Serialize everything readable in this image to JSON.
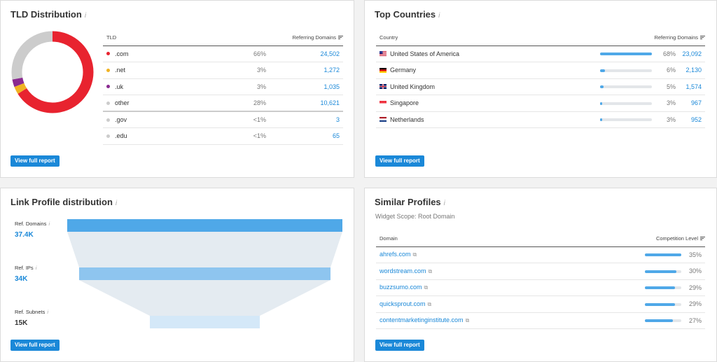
{
  "tld": {
    "title": "TLD Distribution",
    "info": "i",
    "col_tld": "TLD",
    "col_ref": "Referring Domains",
    "rows": [
      {
        "tld": ".com",
        "pct": "66%",
        "value": "24,502",
        "color": "#e8232f"
      },
      {
        "tld": ".net",
        "pct": "3%",
        "value": "1,272",
        "color": "#f0b323"
      },
      {
        "tld": ".uk",
        "pct": "3%",
        "value": "1,035",
        "color": "#8a2a90"
      },
      {
        "tld": "other",
        "pct": "28%",
        "value": "10,621",
        "color": "#cccccc"
      },
      {
        "tld": ".gov",
        "pct": "<1%",
        "value": "3",
        "color": "#cccccc"
      },
      {
        "tld": ".edu",
        "pct": "<1%",
        "value": "65",
        "color": "#cccccc"
      }
    ],
    "donut_fractions": [
      0.66,
      0.03,
      0.03,
      0.28
    ],
    "button": "View full report"
  },
  "countries": {
    "title": "Top Countries",
    "info": "i",
    "col_country": "Country",
    "col_ref": "Referring Domains",
    "rows": [
      {
        "name": "United States of America",
        "flag": "us-flag-icon",
        "pct": "68%",
        "value": "23,092",
        "fill": 1.0
      },
      {
        "name": "Germany",
        "flag": "de-flag-icon",
        "pct": "6%",
        "value": "2,130",
        "fill": 0.09
      },
      {
        "name": "United Kingdom",
        "flag": "uk-flag-icon",
        "pct": "5%",
        "value": "1,574",
        "fill": 0.07
      },
      {
        "name": "Singapore",
        "flag": "sg-flag-icon",
        "pct": "3%",
        "value": "967",
        "fill": 0.04
      },
      {
        "name": "Netherlands",
        "flag": "nl-flag-icon",
        "pct": "3%",
        "value": "952",
        "fill": 0.04
      }
    ],
    "button": "View full report"
  },
  "link_profile": {
    "title": "Link Profile distribution",
    "info": "i",
    "items": [
      {
        "label": "Ref. Domains",
        "value": "37.4K"
      },
      {
        "label": "Ref. IPs",
        "value": "34K"
      },
      {
        "label": "Ref. Subnets",
        "value": "15K"
      }
    ],
    "button": "View full report"
  },
  "similar": {
    "title": "Similar Profiles",
    "info": "i",
    "scope": "Widget Scope: Root Domain",
    "col_domain": "Domain",
    "col_level": "Competition Level",
    "rows": [
      {
        "domain": "ahrefs.com",
        "pct": "35%",
        "fill": 1.0
      },
      {
        "domain": "wordstream.com",
        "pct": "30%",
        "fill": 0.86
      },
      {
        "domain": "buzzsumo.com",
        "pct": "29%",
        "fill": 0.83
      },
      {
        "domain": "quicksprout.com",
        "pct": "29%",
        "fill": 0.83
      },
      {
        "domain": "contentmarketinginstitute.com",
        "pct": "27%",
        "fill": 0.77
      }
    ],
    "button": "View full report"
  }
}
